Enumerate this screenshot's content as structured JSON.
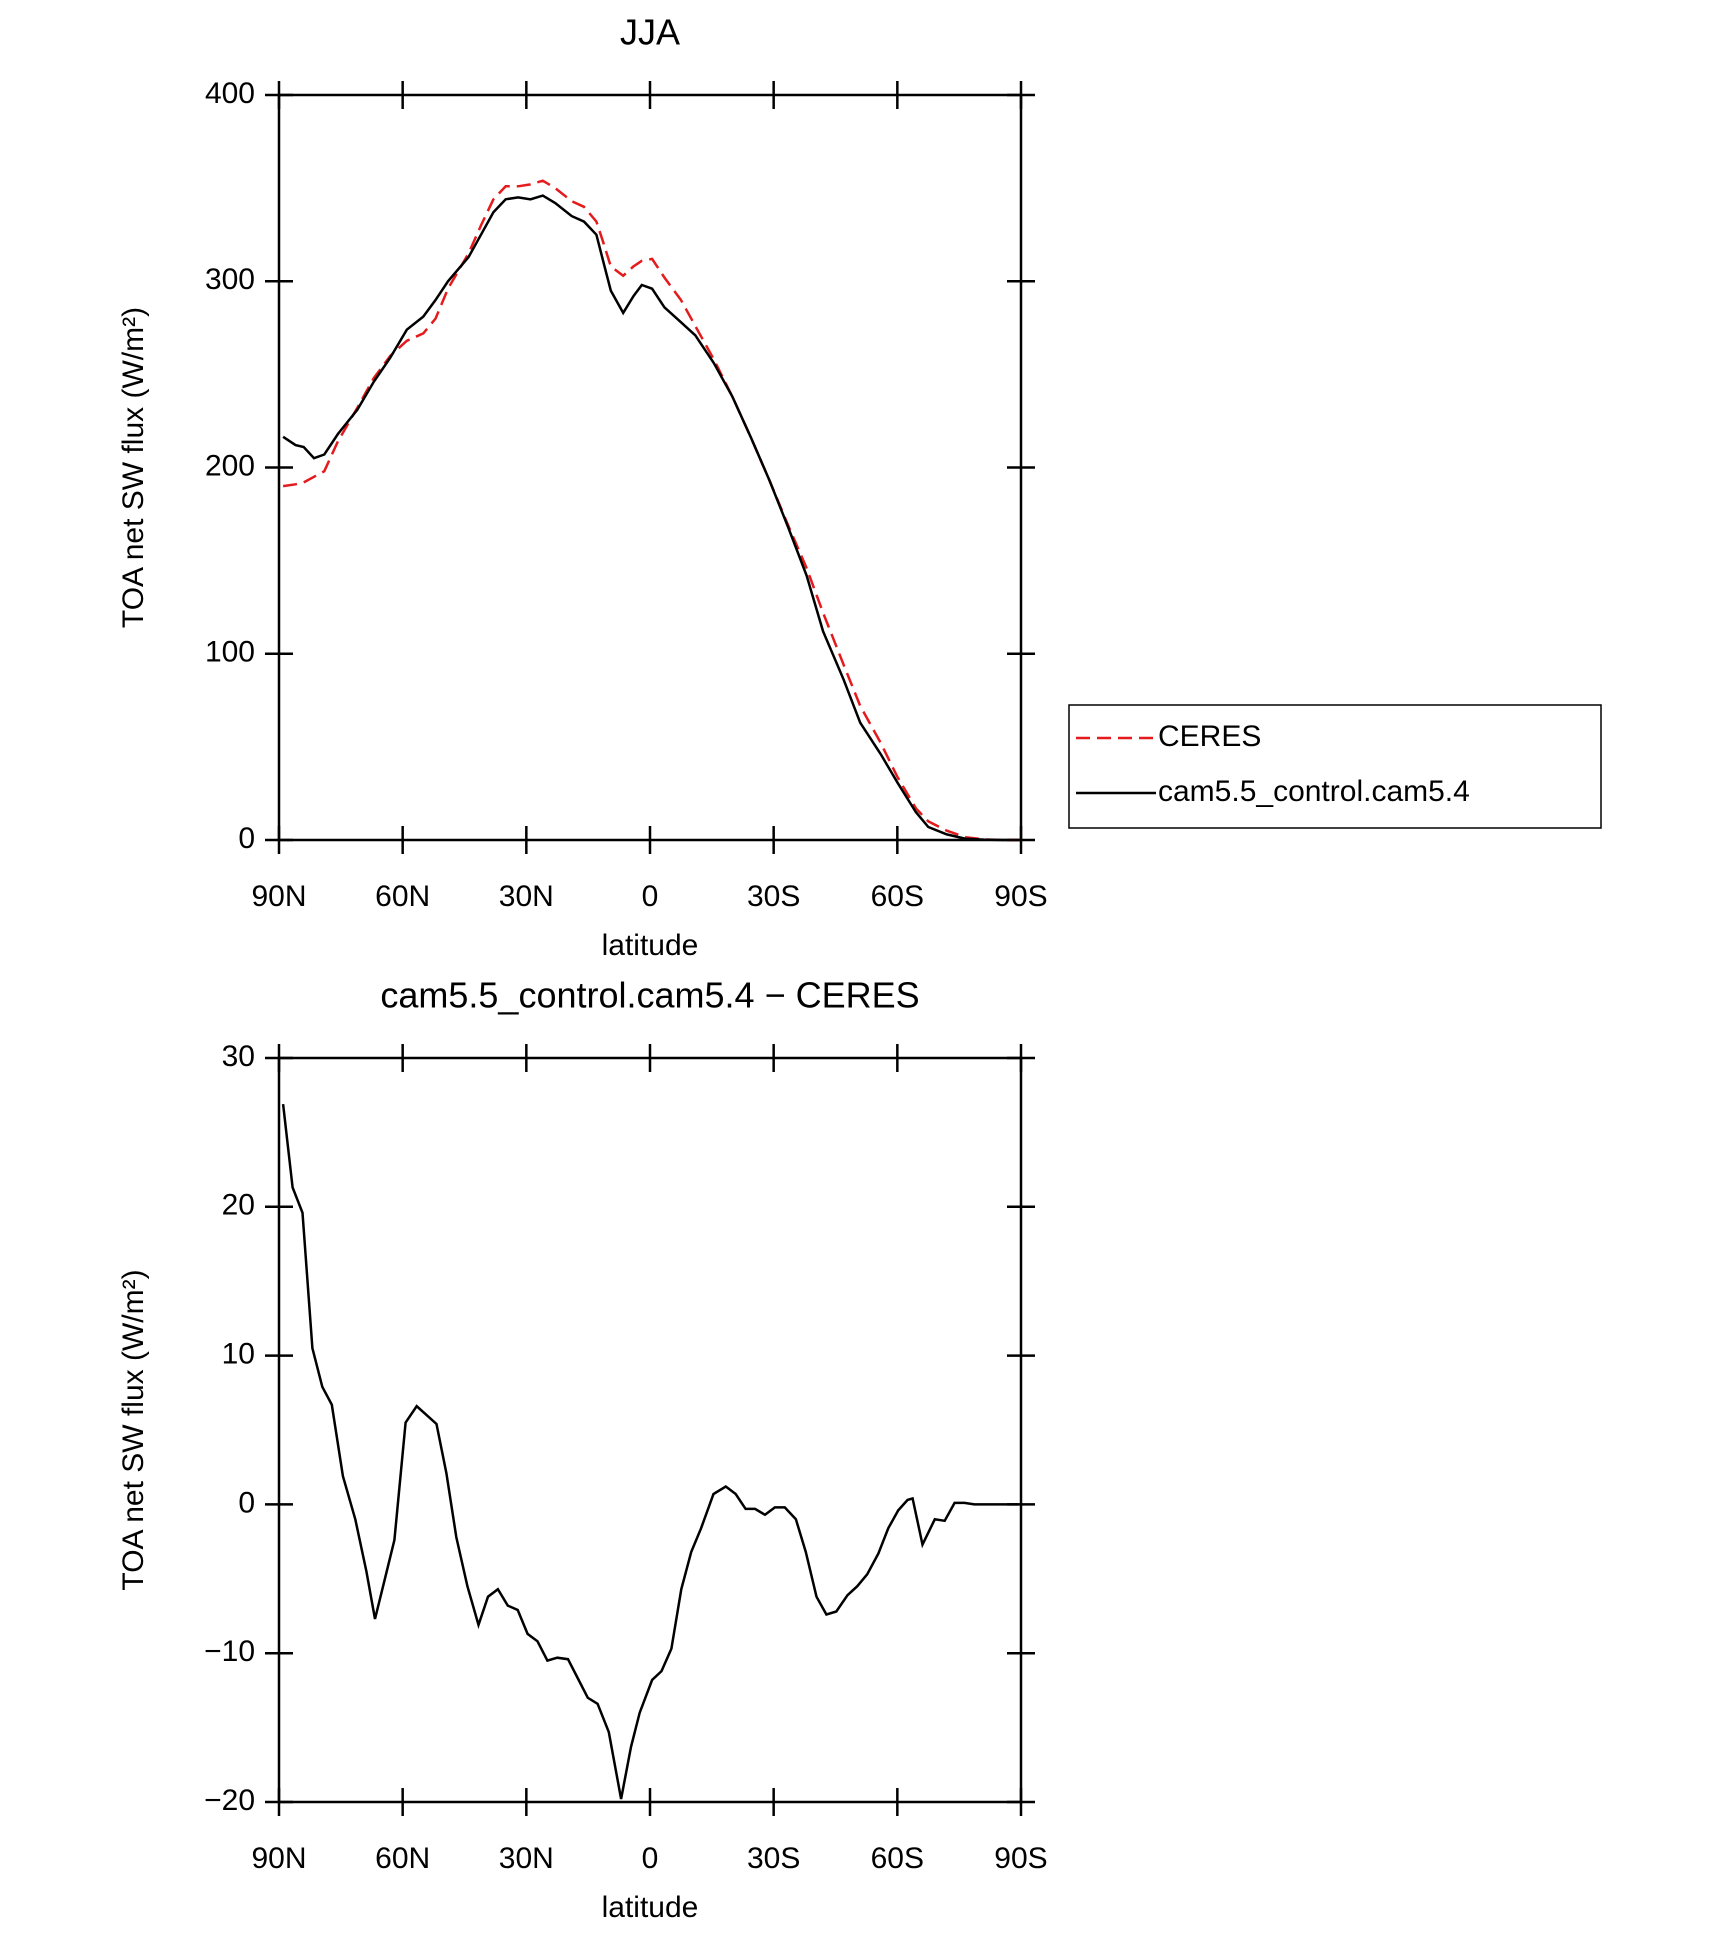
{
  "chart_data": [
    {
      "type": "line",
      "title": "JJA",
      "xlabel": "latitude",
      "ylabel": "TOA net SW flux (W/m²)",
      "xlim": [
        90,
        -90
      ],
      "xticks": [
        {
          "value": 90,
          "label": "90N"
        },
        {
          "value": 60,
          "label": "60N"
        },
        {
          "value": 30,
          "label": "30N"
        },
        0,
        {
          "value": -30,
          "label": "30S"
        },
        {
          "value": -60,
          "label": "60S"
        },
        {
          "value": -90,
          "label": "90S"
        }
      ],
      "ylim": [
        0,
        400
      ],
      "yticks": [
        0,
        100,
        200,
        300,
        400
      ],
      "legend": "right",
      "x": [
        89,
        86,
        84,
        81.5,
        79,
        75.7,
        71,
        67,
        63,
        59,
        55,
        52,
        49,
        44,
        41,
        38,
        35,
        32,
        29,
        26,
        23,
        19,
        16,
        13,
        11.5,
        9.5,
        6.5,
        4,
        2,
        -0.5,
        -3.5,
        -7.5,
        -11,
        -15.5,
        -20,
        -24.5,
        -29,
        -33.5,
        -38,
        -42,
        -47,
        -51,
        -56,
        -60,
        -64.5,
        -67.5,
        -72,
        -76.5,
        -81,
        -85.5,
        -89.5
      ],
      "series": [
        {
          "name": "CERES",
          "color": "#e41a1c",
          "dash": true,
          "values": [
            190,
            191,
            192,
            195,
            198,
            214,
            232,
            248,
            260,
            268,
            272,
            280,
            296,
            315,
            330,
            344,
            351,
            351,
            352,
            354,
            350,
            343,
            340,
            332,
            322,
            308,
            303,
            308,
            311,
            312,
            302,
            290,
            276,
            258,
            238,
            216,
            193,
            169,
            146,
            122,
            94,
            72,
            52,
            34,
            17,
            10,
            5,
            1.5,
            0.3,
            0,
            0
          ]
        },
        {
          "name": "cam5.5_control.cam5.4",
          "color": "#000000",
          "dash": false,
          "values": [
            216.5,
            212,
            211,
            205,
            207,
            218,
            231,
            246,
            259,
            274,
            281,
            290,
            300,
            313,
            325,
            337,
            344,
            345,
            344,
            346,
            342,
            335,
            332,
            325,
            312,
            295,
            283,
            292,
            298,
            296,
            286,
            278,
            271,
            256,
            238,
            216,
            193,
            168,
            142,
            112,
            86,
            63,
            46,
            31,
            15,
            7,
            3,
            0.7,
            0.2,
            0,
            0
          ]
        }
      ]
    },
    {
      "type": "line",
      "title": "cam5.5_control.cam5.4 − CERES",
      "xlabel": "latitude",
      "ylabel": "TOA net SW flux (W/m²)",
      "xlim": [
        90,
        -90
      ],
      "xticks": [
        {
          "value": 90,
          "label": "90N"
        },
        {
          "value": 60,
          "label": "60N"
        },
        {
          "value": 30,
          "label": "30N"
        },
        0,
        {
          "value": -30,
          "label": "30S"
        },
        {
          "value": -60,
          "label": "60S"
        },
        {
          "value": -90,
          "label": "90S"
        }
      ],
      "ylim": [
        -20,
        30
      ],
      "yticks": [
        {
          "value": -20,
          "label": "−20"
        },
        {
          "value": -10,
          "label": "−10"
        },
        0,
        10,
        20,
        30
      ],
      "x": [
        89,
        86.7,
        84.3,
        81.9,
        79.5,
        77.2,
        74.5,
        71.5,
        68.8,
        66.7,
        64.3,
        62,
        59.3,
        56.6,
        54.2,
        51.8,
        49.4,
        47,
        44.3,
        41.6,
        39.3,
        36.9,
        34.5,
        32.1,
        29.7,
        27.3,
        24.9,
        22.5,
        19.9,
        17.5,
        15.1,
        12.7,
        10,
        7,
        4.6,
        2.5,
        -0.5,
        -2.8,
        -5.2,
        -7.6,
        -10,
        -12.4,
        -15.4,
        -18.4,
        -20.8,
        -23.2,
        -25.5,
        -27.9,
        -30.3,
        -32.7,
        -35.4,
        -37.8,
        -40.4,
        -42.8,
        -45.2,
        -47.9,
        -50.3,
        -52.7,
        -55.4,
        -57.8,
        -60.2,
        -62.5,
        -63.7,
        -66.1,
        -69.1,
        -71.5,
        -73.9,
        -76.3,
        -78.7,
        -81,
        -85.5,
        -89.4
      ],
      "series": [
        {
          "color": "#000000",
          "dash": false,
          "values": [
            26.9,
            21.3,
            19.6,
            10.5,
            7.9,
            6.7,
            1.9,
            -1.0,
            -4.5,
            -7.7,
            -5.0,
            -2.4,
            5.5,
            6.6,
            6.0,
            5.4,
            2.1,
            -2.2,
            -5.5,
            -8.1,
            -6.2,
            -5.7,
            -6.8,
            -7.1,
            -8.7,
            -9.2,
            -10.5,
            -10.3,
            -10.4,
            -11.7,
            -13.0,
            -13.4,
            -15.3,
            -19.8,
            -16.3,
            -14.0,
            -11.8,
            -11.2,
            -9.7,
            -5.7,
            -3.2,
            -1.6,
            0.7,
            1.2,
            0.7,
            -0.3,
            -0.3,
            -0.7,
            -0.2,
            -0.2,
            -1.0,
            -3.2,
            -6.2,
            -7.4,
            -7.2,
            -6.1,
            -5.5,
            -4.7,
            -3.3,
            -1.6,
            -0.4,
            0.3,
            0.4,
            -2.7,
            -1.0,
            -1.1,
            0.1,
            0.1,
            0,
            0,
            0,
            0
          ]
        }
      ]
    }
  ]
}
